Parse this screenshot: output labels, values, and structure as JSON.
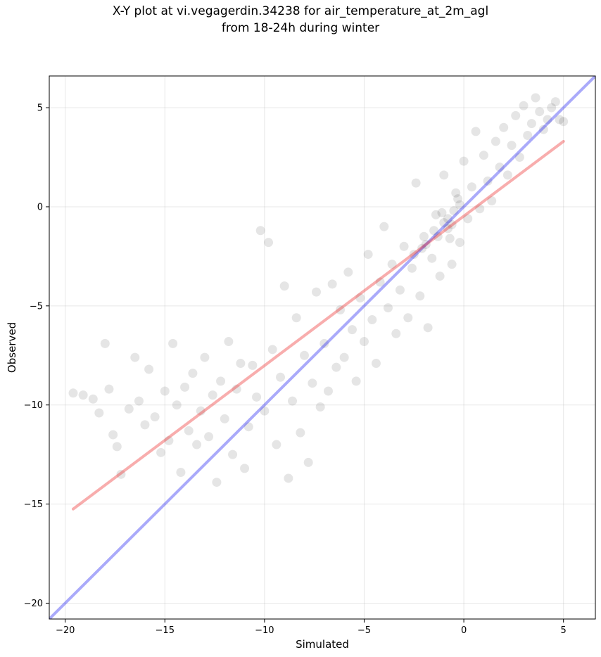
{
  "chart_data": {
    "type": "scatter",
    "title": "X-Y plot at vi.vegagerdin.34238 for air_temperature_at_2m_agl",
    "subtitle": "from 18-24h during winter",
    "xlabel": "Simulated",
    "ylabel": "Observed",
    "xlim": [
      -20.8,
      6.6
    ],
    "ylim": [
      -20.8,
      6.6
    ],
    "x_ticks": [
      -20,
      -15,
      -10,
      -5,
      0,
      5
    ],
    "y_ticks": [
      -20,
      -15,
      -10,
      -5,
      0,
      5
    ],
    "x_tick_labels": [
      "−20",
      "−15",
      "−10",
      "−5",
      "0",
      "5"
    ],
    "y_tick_labels": [
      "−20",
      "−15",
      "−10",
      "−5",
      "0",
      "5"
    ],
    "grid": true,
    "point_color": "#000000",
    "point_alpha": 0.1,
    "points": [
      [
        -19.6,
        -9.4
      ],
      [
        -19.1,
        -9.5
      ],
      [
        -18.6,
        -9.7
      ],
      [
        -18.3,
        -10.4
      ],
      [
        -18.0,
        -6.9
      ],
      [
        -17.8,
        -9.2
      ],
      [
        -17.6,
        -11.5
      ],
      [
        -17.4,
        -12.1
      ],
      [
        -17.2,
        -13.5
      ],
      [
        -16.8,
        -10.2
      ],
      [
        -16.5,
        -7.6
      ],
      [
        -16.3,
        -9.8
      ],
      [
        -16.0,
        -11.0
      ],
      [
        -15.8,
        -8.2
      ],
      [
        -15.5,
        -10.6
      ],
      [
        -15.2,
        -12.4
      ],
      [
        -15.0,
        -9.3
      ],
      [
        -14.8,
        -11.8
      ],
      [
        -14.6,
        -6.9
      ],
      [
        -14.4,
        -10.0
      ],
      [
        -14.2,
        -13.4
      ],
      [
        -14.0,
        -9.1
      ],
      [
        -13.8,
        -11.3
      ],
      [
        -13.6,
        -8.4
      ],
      [
        -13.4,
        -12.0
      ],
      [
        -13.2,
        -10.3
      ],
      [
        -13.0,
        -7.6
      ],
      [
        -12.8,
        -11.6
      ],
      [
        -12.6,
        -9.5
      ],
      [
        -12.4,
        -13.9
      ],
      [
        -12.2,
        -8.8
      ],
      [
        -12.0,
        -10.7
      ],
      [
        -11.8,
        -6.8
      ],
      [
        -11.6,
        -12.5
      ],
      [
        -11.4,
        -9.2
      ],
      [
        -11.2,
        -7.9
      ],
      [
        -11.0,
        -13.2
      ],
      [
        -10.8,
        -11.1
      ],
      [
        -10.6,
        -8.0
      ],
      [
        -10.4,
        -9.6
      ],
      [
        -10.2,
        -1.2
      ],
      [
        -10.0,
        -10.3
      ],
      [
        -9.8,
        -1.8
      ],
      [
        -9.6,
        -7.2
      ],
      [
        -9.4,
        -12.0
      ],
      [
        -9.2,
        -8.6
      ],
      [
        -9.0,
        -4.0
      ],
      [
        -8.8,
        -13.7
      ],
      [
        -8.6,
        -9.8
      ],
      [
        -8.4,
        -5.6
      ],
      [
        -8.2,
        -11.4
      ],
      [
        -8.0,
        -7.5
      ],
      [
        -7.8,
        -12.9
      ],
      [
        -7.6,
        -8.9
      ],
      [
        -7.4,
        -4.3
      ],
      [
        -7.2,
        -10.1
      ],
      [
        -7.0,
        -6.9
      ],
      [
        -6.8,
        -9.3
      ],
      [
        -6.6,
        -3.9
      ],
      [
        -6.4,
        -8.1
      ],
      [
        -6.2,
        -5.2
      ],
      [
        -6.0,
        -7.6
      ],
      [
        -5.8,
        -3.3
      ],
      [
        -5.6,
        -6.2
      ],
      [
        -5.4,
        -8.8
      ],
      [
        -5.2,
        -4.6
      ],
      [
        -5.0,
        -6.8
      ],
      [
        -4.8,
        -2.4
      ],
      [
        -4.6,
        -5.7
      ],
      [
        -4.4,
        -7.9
      ],
      [
        -4.2,
        -3.8
      ],
      [
        -4.0,
        -1.0
      ],
      [
        -3.8,
        -5.1
      ],
      [
        -3.6,
        -2.9
      ],
      [
        -3.4,
        -6.4
      ],
      [
        -3.2,
        -4.2
      ],
      [
        -3.0,
        -2.0
      ],
      [
        -2.8,
        -5.6
      ],
      [
        -2.6,
        -3.1
      ],
      [
        -2.4,
        1.2
      ],
      [
        -2.2,
        -4.5
      ],
      [
        -2.0,
        -1.5
      ],
      [
        -1.8,
        -6.1
      ],
      [
        -1.6,
        -2.6
      ],
      [
        -1.4,
        -0.4
      ],
      [
        -1.2,
        -3.5
      ],
      [
        -1.0,
        1.6
      ],
      [
        -0.8,
        -1.1
      ],
      [
        -0.6,
        -2.9
      ],
      [
        -0.4,
        0.7
      ],
      [
        -0.2,
        -1.8
      ],
      [
        0.0,
        2.3
      ],
      [
        0.2,
        -0.6
      ],
      [
        0.4,
        1.0
      ],
      [
        0.6,
        3.8
      ],
      [
        0.8,
        -0.1
      ],
      [
        1.0,
        2.6
      ],
      [
        1.2,
        1.3
      ],
      [
        1.4,
        0.3
      ],
      [
        1.6,
        3.3
      ],
      [
        1.8,
        2.0
      ],
      [
        2.0,
        4.0
      ],
      [
        2.2,
        1.6
      ],
      [
        2.4,
        3.1
      ],
      [
        2.6,
        4.6
      ],
      [
        2.8,
        2.5
      ],
      [
        3.0,
        5.1
      ],
      [
        3.2,
        3.6
      ],
      [
        3.4,
        4.2
      ],
      [
        3.6,
        5.5
      ],
      [
        3.8,
        4.8
      ],
      [
        4.0,
        3.9
      ],
      [
        4.2,
        4.4
      ],
      [
        4.4,
        5.0
      ],
      [
        4.6,
        5.3
      ],
      [
        4.8,
        4.4
      ],
      [
        5.0,
        4.3
      ],
      [
        -2.5,
        -2.4
      ],
      [
        -1.5,
        -1.2
      ],
      [
        -1.0,
        -0.8
      ],
      [
        -0.5,
        -0.2
      ],
      [
        -0.3,
        0.4
      ],
      [
        -0.8,
        -0.6
      ],
      [
        -1.3,
        -1.5
      ],
      [
        -2.1,
        -2.1
      ],
      [
        -0.6,
        -0.9
      ],
      [
        -0.2,
        0.1
      ],
      [
        -1.9,
        -1.9
      ],
      [
        -1.1,
        -0.3
      ],
      [
        -0.7,
        -1.6
      ]
    ],
    "fit_line": {
      "color": "#ee3333",
      "alpha": 0.4,
      "x": [
        -19.6,
        5.0
      ],
      "y": [
        -15.25,
        3.3
      ]
    },
    "identity_line": {
      "color": "#2a2af2",
      "alpha": 0.4,
      "x": [
        -20.8,
        6.6
      ],
      "y": [
        -20.8,
        6.6
      ]
    }
  }
}
